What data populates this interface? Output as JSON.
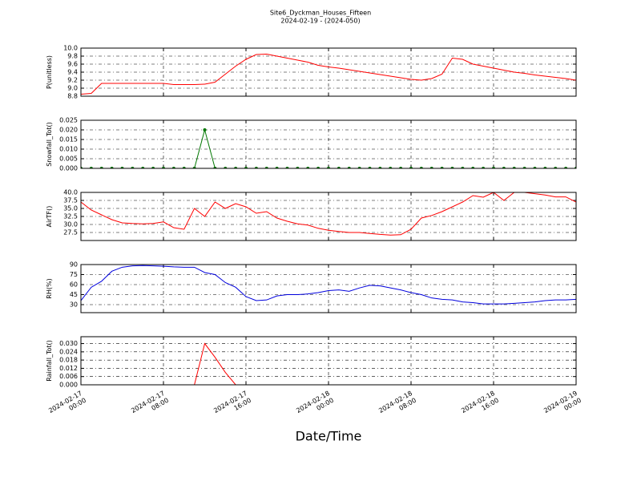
{
  "title": "Site6_Dyckman_Houses_Fifteen",
  "subtitle": "2024-02-19 - (2024-050)",
  "x_label": "Date/Time",
  "xlim": [
    "2024-02-17 00:00",
    "2024-02-19 00:00"
  ],
  "xticks": [
    "2024-02-17 00:00",
    "2024-02-17 08:00",
    "2024-02-17 16:00",
    "2024-02-18 00:00",
    "2024-02-18 08:00",
    "2024-02-18 16:00",
    "2024-02-19 00:00"
  ],
  "grid": true,
  "x": [
    "2024-02-17 00:00",
    "2024-02-17 01:00",
    "2024-02-17 02:00",
    "2024-02-17 03:00",
    "2024-02-17 04:00",
    "2024-02-17 05:00",
    "2024-02-17 06:00",
    "2024-02-17 07:00",
    "2024-02-17 08:00",
    "2024-02-17 09:00",
    "2024-02-17 10:00",
    "2024-02-17 11:00",
    "2024-02-17 12:00",
    "2024-02-17 13:00",
    "2024-02-17 14:00",
    "2024-02-17 15:00",
    "2024-02-17 16:00",
    "2024-02-17 17:00",
    "2024-02-17 18:00",
    "2024-02-17 19:00",
    "2024-02-17 20:00",
    "2024-02-17 21:00",
    "2024-02-17 22:00",
    "2024-02-17 23:00",
    "2024-02-18 00:00",
    "2024-02-18 01:00",
    "2024-02-18 02:00",
    "2024-02-18 03:00",
    "2024-02-18 04:00",
    "2024-02-18 05:00",
    "2024-02-18 06:00",
    "2024-02-18 07:00",
    "2024-02-18 08:00",
    "2024-02-18 09:00",
    "2024-02-18 10:00",
    "2024-02-18 11:00",
    "2024-02-18 12:00",
    "2024-02-18 13:00",
    "2024-02-18 14:00",
    "2024-02-18 15:00",
    "2024-02-18 16:00",
    "2024-02-18 17:00",
    "2024-02-18 18:00",
    "2024-02-18 19:00",
    "2024-02-18 20:00",
    "2024-02-18 21:00",
    "2024-02-18 22:00",
    "2024-02-18 23:00",
    "2024-02-19 00:00"
  ],
  "chart_data": [
    {
      "type": "line",
      "y_label": "P(unitless)",
      "color": "#ff0000",
      "markers": false,
      "ylim": [
        8.8,
        10.0
      ],
      "yticks": [
        8.8,
        {
          "value": 9,
          "label": "9.0"
        },
        9.2,
        9.4,
        9.6,
        9.8,
        {
          "value": 10,
          "label": "10.0"
        }
      ],
      "values": [
        8.85,
        8.87,
        9.12,
        9.12,
        9.12,
        9.12,
        9.12,
        9.12,
        9.12,
        9.09,
        9.09,
        9.09,
        9.1,
        9.15,
        9.35,
        9.55,
        9.72,
        9.84,
        9.85,
        9.8,
        9.75,
        9.7,
        9.65,
        9.57,
        9.53,
        9.5,
        9.46,
        9.42,
        9.38,
        9.34,
        9.3,
        9.26,
        9.22,
        9.2,
        9.24,
        9.35,
        9.75,
        9.72,
        9.6,
        9.55,
        9.5,
        9.45,
        9.4,
        9.37,
        9.33,
        9.3,
        9.27,
        9.24,
        9.2
      ]
    },
    {
      "type": "line",
      "y_label": "Snowfall_Tot()",
      "color": "#007700",
      "markers": true,
      "ylim": [
        0,
        0.025
      ],
      "yticks": [
        {
          "value": 0,
          "label": "0.000"
        },
        {
          "value": 0.005,
          "label": "0.005"
        },
        {
          "value": 0.01,
          "label": "0.010"
        },
        {
          "value": 0.015,
          "label": "0.015"
        },
        {
          "value": 0.02,
          "label": "0.020"
        },
        {
          "value": 0.025,
          "label": "0.025"
        }
      ],
      "values": [
        0,
        0,
        0,
        0,
        0,
        0,
        0,
        0,
        0,
        0,
        0,
        0,
        0.02,
        0,
        0,
        0,
        0,
        0,
        0,
        0,
        0,
        0,
        0,
        0,
        0,
        0,
        0,
        0,
        0,
        0,
        0,
        0,
        0,
        0,
        0,
        0,
        0,
        0,
        0,
        0,
        0,
        0,
        0,
        0,
        0,
        0,
        0,
        0,
        0
      ]
    },
    {
      "type": "line",
      "y_label": "AirTF()",
      "color": "#ff0000",
      "markers": false,
      "ylim": [
        25,
        40
      ],
      "yticks": [
        27.5,
        {
          "value": 30,
          "label": "30.0"
        },
        32.5,
        {
          "value": 35,
          "label": "35.0"
        },
        37.5,
        {
          "value": 40,
          "label": "40.0"
        }
      ],
      "values": [
        37,
        34.5,
        33,
        31.5,
        30.5,
        30.3,
        30.2,
        30.3,
        30.8,
        29,
        28.5,
        35,
        32.5,
        37,
        35,
        36.5,
        35.5,
        33.5,
        34,
        32,
        31,
        30.2,
        29.8,
        28.8,
        28.2,
        27.8,
        27.5,
        27.5,
        27.2,
        26.9,
        26.7,
        26.8,
        28.5,
        32,
        32.8,
        34,
        35.5,
        37,
        39,
        38.5,
        40,
        37.5,
        40,
        40,
        39.6,
        39.2,
        38.6,
        38.6,
        37
      ]
    },
    {
      "type": "line",
      "y_label": "RH(%)",
      "color": "#0000dd",
      "markers": false,
      "ylim": [
        18,
        90
      ],
      "yticks": [
        30,
        45,
        60,
        75,
        90
      ],
      "values": [
        36,
        56,
        65,
        80,
        86,
        88,
        88.5,
        88,
        87.5,
        86.5,
        86,
        86,
        78,
        75,
        63,
        56,
        42,
        36,
        37,
        43,
        45,
        45,
        46,
        48,
        51,
        52,
        50,
        55,
        59,
        58,
        55,
        52,
        48,
        45,
        40,
        38,
        37,
        34,
        33,
        31,
        31,
        31,
        32,
        33,
        34,
        36,
        37,
        37,
        38
      ]
    },
    {
      "type": "line",
      "y_label": "Rainfall_Tot()",
      "color": "#ff0000",
      "markers": false,
      "ylim": [
        0,
        0.035
      ],
      "yticks": [
        {
          "value": 0,
          "label": "0.000"
        },
        {
          "value": 0.006,
          "label": "0.006"
        },
        {
          "value": 0.012,
          "label": "0.012"
        },
        {
          "value": 0.018,
          "label": "0.018"
        },
        {
          "value": 0.024,
          "label": "0.024"
        },
        {
          "value": 0.03,
          "label": "0.030"
        }
      ],
      "values": [
        0,
        0,
        0,
        0,
        0,
        0,
        0,
        0,
        0,
        0,
        0,
        0,
        0.03,
        0.02,
        0.009,
        0,
        0,
        0,
        0,
        0,
        0,
        0,
        0,
        0,
        0,
        0,
        0,
        0,
        0,
        0,
        0,
        0,
        0,
        0,
        0,
        0,
        0,
        0,
        0,
        0,
        0,
        0,
        0,
        0,
        0,
        0,
        0,
        0,
        0
      ]
    }
  ]
}
